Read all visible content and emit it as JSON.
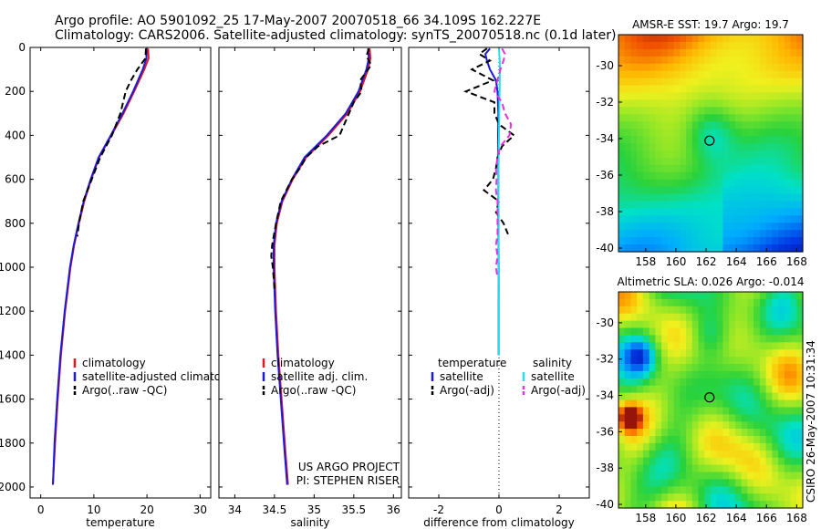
{
  "header": {
    "line1": "Argo profile: AO 5901092_25 17-May-2007 20070518_66 34.109S 162.227E",
    "line2": "Climatology: CARS2006. Satellite-adjusted climatology: synTS_20070518.nc (0.1d later)"
  },
  "side_text": "CSIRO 26-May-2007 10:31:34",
  "colors": {
    "red": "#e8141e",
    "blue": "#1a1adc",
    "black": "#000000",
    "cyan": "#22e0ee",
    "magenta": "#e632e0"
  },
  "chart_data": [
    {
      "type": "line",
      "id": "temperature",
      "xlabel": "temperature",
      "xlim": [
        -2,
        32
      ],
      "ylim": [
        2050,
        0
      ],
      "xticks": [
        0,
        10,
        20,
        30
      ],
      "yticks": [
        0,
        200,
        400,
        600,
        800,
        1000,
        1200,
        1400,
        1600,
        1800,
        2000
      ],
      "legend": {
        "entries": [
          {
            "label": "climatology",
            "color": "red",
            "dash": "solid"
          },
          {
            "label": "satellite-adjusted climatology",
            "color": "blue",
            "dash": "solid"
          },
          {
            "label": "Argo(..raw -QC)",
            "color": "black",
            "dash": "dash"
          }
        ]
      },
      "series": [
        {
          "name": "climatology",
          "color": "red",
          "dash": "solid",
          "depth": [
            5,
            50,
            100,
            200,
            300,
            400,
            500,
            600,
            700,
            800,
            900,
            1000,
            1200,
            1400,
            1600,
            1800,
            1990
          ],
          "values": [
            20.2,
            20.3,
            19.5,
            17.6,
            15.6,
            13.3,
            11.0,
            9.5,
            8.2,
            7.2,
            6.3,
            5.6,
            4.6,
            3.8,
            3.2,
            2.7,
            2.3
          ]
        },
        {
          "name": "satellite-adjusted climatology",
          "color": "blue",
          "dash": "solid",
          "depth": [
            5,
            50,
            100,
            200,
            300,
            400,
            500,
            600,
            700,
            800,
            900,
            1000,
            1200,
            1400,
            1600,
            1800,
            1990
          ],
          "values": [
            19.9,
            19.9,
            19.2,
            17.4,
            15.4,
            13.2,
            10.9,
            9.4,
            8.1,
            7.1,
            6.2,
            5.5,
            4.5,
            3.7,
            3.1,
            2.6,
            2.3
          ]
        },
        {
          "name": "Argo(..raw -QC)",
          "color": "black",
          "dash": "dash",
          "depth": [
            5,
            50,
            100,
            150,
            200,
            300,
            400,
            500,
            600,
            700,
            800,
            860
          ],
          "values": [
            19.8,
            19.7,
            18.2,
            17.0,
            16.0,
            15.0,
            13.4,
            11.2,
            9.6,
            8.0,
            7.2,
            6.9
          ]
        }
      ]
    },
    {
      "type": "line",
      "id": "salinity",
      "xlabel": "salinity",
      "xlim": [
        33.8,
        36.1
      ],
      "ylim": [
        2050,
        0
      ],
      "xticks": [
        34,
        34.5,
        35,
        35.5,
        36
      ],
      "legend": {
        "entries": [
          {
            "label": "climatology",
            "color": "red",
            "dash": "solid"
          },
          {
            "label": "satellite adj. clim.",
            "color": "blue",
            "dash": "solid"
          },
          {
            "label": "Argo(..raw -QC)",
            "color": "black",
            "dash": "dash"
          }
        ]
      },
      "annotation": [
        "US ARGO PROJECT",
        "PI: STEPHEN RISER"
      ],
      "series": [
        {
          "name": "climatology",
          "color": "red",
          "dash": "solid",
          "depth": [
            5,
            50,
            100,
            200,
            300,
            400,
            500,
            600,
            700,
            800,
            900,
            1000,
            1200,
            1400,
            1600,
            1800,
            1990
          ],
          "values": [
            35.7,
            35.71,
            35.68,
            35.58,
            35.42,
            35.18,
            34.9,
            34.73,
            34.6,
            34.53,
            34.5,
            34.5,
            34.52,
            34.55,
            34.59,
            34.63,
            34.67
          ]
        },
        {
          "name": "satellite adj. clim.",
          "color": "blue",
          "dash": "solid",
          "depth": [
            5,
            50,
            100,
            200,
            300,
            400,
            500,
            600,
            700,
            800,
            900,
            1000,
            1200,
            1400,
            1600,
            1800,
            1990
          ],
          "values": [
            35.68,
            35.69,
            35.66,
            35.56,
            35.4,
            35.16,
            34.88,
            34.72,
            34.59,
            34.52,
            34.49,
            34.49,
            34.51,
            34.54,
            34.58,
            34.62,
            34.66
          ]
        },
        {
          "name": "Argo(..raw -QC)",
          "color": "black",
          "dash": "dash",
          "depth": [
            5,
            40,
            80,
            150,
            200,
            250,
            300,
            350,
            400,
            450,
            500,
            550,
            600,
            700,
            800,
            900,
            950,
            1000,
            1100
          ],
          "values": [
            35.69,
            35.66,
            35.72,
            35.58,
            35.6,
            35.5,
            35.44,
            35.38,
            35.32,
            35.05,
            34.9,
            34.82,
            34.72,
            34.58,
            34.52,
            34.47,
            34.46,
            34.48,
            34.5
          ]
        }
      ]
    },
    {
      "type": "line",
      "id": "difference",
      "xlabel": "difference from climatology",
      "xlim": [
        -3,
        3
      ],
      "ylim": [
        2050,
        0
      ],
      "xticks": [
        -2,
        0,
        2
      ],
      "legend": {
        "headers": [
          "temperature",
          "salinity"
        ],
        "entries": [
          {
            "label": "satellite",
            "color": "blue",
            "dash": "solid"
          },
          {
            "label": "Argo(-adj)",
            "color": "black",
            "dash": "dash"
          },
          {
            "label": "satellite",
            "color": "cyan",
            "dash": "solid"
          },
          {
            "label": "Argo(-adj)",
            "color": "magenta",
            "dash": "dash"
          }
        ]
      },
      "series": [
        {
          "name": "temperature satellite",
          "color": "blue",
          "dash": "solid",
          "depth": [
            5,
            30,
            60,
            100,
            150,
            200,
            300,
            400,
            600,
            800,
            1000,
            1200,
            1400
          ],
          "values": [
            -0.3,
            -0.45,
            -0.4,
            -0.3,
            -0.1,
            -0.05,
            -0.02,
            -0.03,
            -0.02,
            -0.02,
            -0.01,
            -0.01,
            -0.01
          ]
        },
        {
          "name": "temperature Argo(-adj)",
          "color": "black",
          "dash": "dash",
          "depth": [
            5,
            30,
            60,
            100,
            150,
            200,
            250,
            300,
            350,
            400,
            450,
            500,
            550,
            600,
            650,
            700,
            750,
            800,
            850
          ],
          "values": [
            -0.4,
            -0.65,
            -0.3,
            -0.9,
            -0.2,
            -1.1,
            -0.15,
            -0.15,
            0.0,
            0.5,
            0.1,
            -0.05,
            -0.1,
            -0.2,
            -0.5,
            0.0,
            -0.1,
            0.15,
            0.3
          ]
        },
        {
          "name": "salinity satellite",
          "color": "cyan",
          "dash": "solid",
          "depth": [
            5,
            50,
            100,
            200,
            300,
            400,
            500,
            600,
            800,
            1000,
            1200,
            1400
          ],
          "values": [
            0.0,
            0.02,
            0.03,
            0.02,
            0.01,
            0.0,
            -0.01,
            -0.02,
            -0.01,
            -0.01,
            0.0,
            0.0
          ]
        },
        {
          "name": "salinity Argo(-adj)",
          "color": "magenta",
          "dash": "dash",
          "depth": [
            5,
            30,
            60,
            100,
            150,
            200,
            250,
            300,
            350,
            400,
            450,
            500,
            550,
            600,
            650,
            700,
            750,
            800,
            850,
            900,
            950,
            1000,
            1050
          ],
          "values": [
            0.1,
            0.2,
            0.15,
            0.05,
            -0.05,
            -0.15,
            0.1,
            0.2,
            0.4,
            0.35,
            0.05,
            -0.05,
            -0.1,
            -0.08,
            -0.1,
            -0.05,
            -0.05,
            -0.05,
            -0.05,
            -0.1,
            -0.05,
            -0.1,
            -0.05
          ]
        }
      ]
    },
    {
      "type": "heatmap",
      "id": "sst-map",
      "title": "AMSR-E SST: 19.7 Argo: 19.7",
      "xlim": [
        156.2,
        168.4
      ],
      "ylim": [
        -40.2,
        -28.3
      ],
      "xticks": [
        158,
        160,
        162,
        164,
        166,
        168
      ],
      "yticks": [
        -30,
        -32,
        -34,
        -36,
        -38,
        -40
      ],
      "marker": {
        "lon": 162.227,
        "lat": -34.109
      }
    },
    {
      "type": "heatmap",
      "id": "sla-map",
      "title": "Altimetric SLA: 0.026 Argo: -0.014",
      "xlim": [
        156.2,
        168.4
      ],
      "ylim": [
        -40.2,
        -28.3
      ],
      "xticks": [
        158,
        160,
        162,
        164,
        166,
        168
      ],
      "yticks": [
        -30,
        -32,
        -34,
        -36,
        -38,
        -40
      ],
      "marker": {
        "lon": 162.227,
        "lat": -34.109
      }
    }
  ]
}
